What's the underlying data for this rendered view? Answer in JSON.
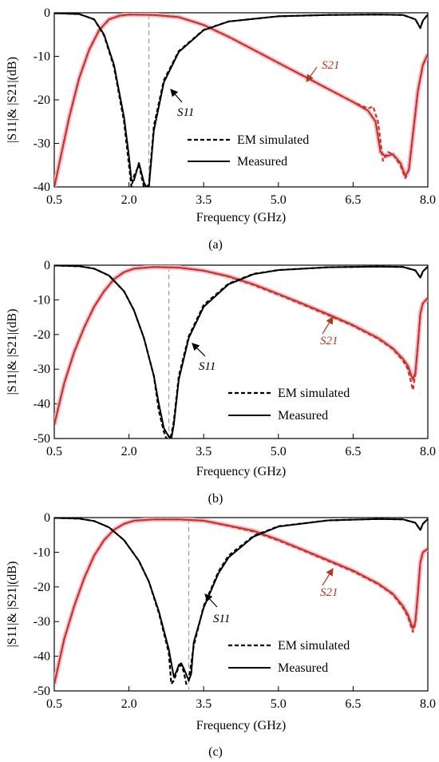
{
  "chart_data": [
    {
      "type": "line",
      "caption": "(a)",
      "xlabel": "Frequency (GHz)",
      "ylabel": "|S11|& |S21|(dB)",
      "xlim": [
        0.5,
        8.0
      ],
      "ylim": [
        -40,
        0
      ],
      "xticks": [
        "0.5",
        "2.0",
        "3.5",
        "5.0",
        "6.5",
        "8.0"
      ],
      "yticks": [
        "0",
        "-10",
        "-20",
        "-30",
        "-40"
      ],
      "legend": [
        "EM simulated",
        "Measured"
      ],
      "annotations": {
        "s11": "S11",
        "s21": "S21"
      },
      "marker_line_x": 2.4,
      "series": [
        {
          "label": "S11",
          "style": "measured",
          "color": "#000000",
          "x": [
            0.5,
            1.0,
            1.3,
            1.5,
            1.7,
            1.9,
            2.0,
            2.05,
            2.1,
            2.2,
            2.3,
            2.35,
            2.4,
            2.5,
            2.7,
            3.0,
            3.5,
            4.0,
            5.0,
            6.0,
            7.0,
            7.5,
            7.75,
            7.85,
            7.9,
            8.0
          ],
          "y": [
            -0.1,
            -0.3,
            -1.5,
            -5,
            -12,
            -24,
            -33,
            -38.5,
            -38.5,
            -34.5,
            -39,
            -40,
            -40,
            -27,
            -16,
            -9,
            -4,
            -2,
            -0.8,
            -0.5,
            -0.4,
            -0.5,
            -1.5,
            -3.5,
            -1.8,
            -0.4
          ]
        },
        {
          "label": "S11",
          "style": "simulated",
          "color": "#000000",
          "x": [
            0.5,
            1.0,
            1.3,
            1.5,
            1.7,
            1.9,
            2.0,
            2.05,
            2.1,
            2.2,
            2.3,
            2.35,
            2.4,
            2.5,
            2.7,
            3.0,
            3.5,
            4.0,
            5.0,
            6.0,
            7.0,
            7.5,
            7.75,
            7.85,
            7.9,
            8.0
          ],
          "y": [
            -0.1,
            -0.3,
            -1.5,
            -5.2,
            -12.5,
            -25,
            -35,
            -40,
            -37.5,
            -35,
            -40,
            -40,
            -39.5,
            -26,
            -15.5,
            -8.8,
            -3.9,
            -2,
            -0.8,
            -0.5,
            -0.4,
            -0.5,
            -1.5,
            -3.5,
            -1.8,
            -0.4
          ]
        },
        {
          "label": "S21",
          "style": "measured",
          "color": "#b03a1e",
          "x": [
            0.5,
            0.8,
            1.0,
            1.2,
            1.4,
            1.6,
            1.8,
            2.0,
            2.5,
            3.0,
            3.5,
            4.0,
            4.5,
            5.0,
            5.5,
            6.0,
            6.5,
            6.8,
            6.95,
            7.05,
            7.15,
            7.3,
            7.45,
            7.55,
            7.62,
            7.7,
            7.8,
            7.9,
            8.0
          ],
          "y": [
            -40,
            -24,
            -15,
            -8.5,
            -4,
            -1.5,
            -0.7,
            -0.4,
            -0.5,
            -1.0,
            -2.8,
            -5.5,
            -8.5,
            -11.5,
            -14.5,
            -17.5,
            -20.5,
            -22.5,
            -25,
            -32,
            -33,
            -32.5,
            -34.5,
            -37.5,
            -36,
            -28,
            -18,
            -12,
            -9.5
          ]
        },
        {
          "label": "S21",
          "style": "simulated",
          "color": "#cf3030",
          "x": [
            0.5,
            0.8,
            1.0,
            1.2,
            1.4,
            1.6,
            1.8,
            2.0,
            2.5,
            3.0,
            3.5,
            4.0,
            4.5,
            5.0,
            5.5,
            6.0,
            6.5,
            6.8,
            6.9,
            7.0,
            7.1,
            7.2,
            7.3,
            7.45,
            7.55,
            7.62,
            7.7,
            7.8,
            7.9,
            8.0
          ],
          "y": [
            -40,
            -24,
            -15,
            -8.5,
            -4,
            -1.5,
            -0.7,
            -0.4,
            -0.5,
            -1.0,
            -2.8,
            -5.5,
            -8.5,
            -11.5,
            -14.5,
            -17.5,
            -20.5,
            -22,
            -21.5,
            -25,
            -34,
            -32,
            -32.5,
            -35,
            -38,
            -36,
            -28,
            -18,
            -12,
            -9.5
          ]
        }
      ]
    },
    {
      "type": "line",
      "caption": "(b)",
      "xlabel": "Frequency (GHz)",
      "ylabel": "|S11|& |S21|(dB)",
      "xlim": [
        0.5,
        8.0
      ],
      "ylim": [
        -50,
        0
      ],
      "xticks": [
        "0.5",
        "2.0",
        "3.5",
        "5.0",
        "6.5",
        "8.0"
      ],
      "yticks": [
        "0",
        "-10",
        "-20",
        "-30",
        "-40",
        "-50"
      ],
      "legend": [
        "EM simulated",
        "Measured"
      ],
      "annotations": {
        "s11": "S11",
        "s21": "S21"
      },
      "marker_line_x": 2.8,
      "series": [
        {
          "label": "S11",
          "style": "measured",
          "color": "#000000",
          "x": [
            0.5,
            1.0,
            1.3,
            1.6,
            1.9,
            2.1,
            2.3,
            2.5,
            2.6,
            2.7,
            2.8,
            2.85,
            2.9,
            3.0,
            3.2,
            3.5,
            4.0,
            4.5,
            5.0,
            6.0,
            7.0,
            7.5,
            7.75,
            7.85,
            7.9,
            8.0
          ],
          "y": [
            -0.1,
            -0.3,
            -1.0,
            -3,
            -7.5,
            -13,
            -21,
            -32,
            -40,
            -47,
            -49.5,
            -50,
            -46,
            -33,
            -21,
            -12,
            -5.5,
            -2.6,
            -1.4,
            -0.6,
            -0.4,
            -0.5,
            -1.5,
            -3.6,
            -1.8,
            -0.4
          ]
        },
        {
          "label": "S11",
          "style": "simulated",
          "color": "#000000",
          "x": [
            0.5,
            1.0,
            1.3,
            1.6,
            1.9,
            2.1,
            2.3,
            2.5,
            2.6,
            2.7,
            2.75,
            2.8,
            2.85,
            2.9,
            3.0,
            3.2,
            3.5,
            4.0,
            4.5,
            5.0,
            6.0,
            7.0,
            7.5,
            7.75,
            7.85,
            7.9,
            8.0
          ],
          "y": [
            -0.1,
            -0.3,
            -1.0,
            -3,
            -7.5,
            -13,
            -21,
            -32,
            -42,
            -48,
            -50,
            -50,
            -49,
            -45,
            -32,
            -20.5,
            -11.5,
            -5.3,
            -2.5,
            -1.4,
            -0.6,
            -0.4,
            -0.5,
            -1.5,
            -3.6,
            -1.8,
            -0.4
          ]
        },
        {
          "label": "S21",
          "style": "measured",
          "color": "#b03a1e",
          "x": [
            0.5,
            0.7,
            0.9,
            1.1,
            1.3,
            1.5,
            1.7,
            1.9,
            2.1,
            2.5,
            3.0,
            3.5,
            4.0,
            4.5,
            5.0,
            5.5,
            6.0,
            6.5,
            7.0,
            7.3,
            7.5,
            7.6,
            7.7,
            7.75,
            7.8,
            7.85,
            7.9,
            8.0
          ],
          "y": [
            -46,
            -34,
            -25,
            -18,
            -12,
            -7.5,
            -4,
            -2,
            -1,
            -0.5,
            -0.7,
            -1.6,
            -3.2,
            -5.5,
            -8.3,
            -11.2,
            -14.2,
            -17.3,
            -21,
            -24,
            -27,
            -29,
            -33,
            -31,
            -23,
            -14,
            -11,
            -9.5
          ]
        },
        {
          "label": "S21",
          "style": "simulated",
          "color": "#cf3030",
          "x": [
            0.5,
            0.7,
            0.9,
            1.1,
            1.3,
            1.5,
            1.7,
            1.9,
            2.1,
            2.5,
            3.0,
            3.5,
            4.0,
            4.5,
            5.0,
            5.5,
            6.0,
            6.5,
            7.0,
            7.3,
            7.5,
            7.6,
            7.7,
            7.75,
            7.8,
            7.85,
            7.9,
            8.0
          ],
          "y": [
            -46,
            -34,
            -25,
            -18,
            -12,
            -7.5,
            -4,
            -2,
            -1,
            -0.5,
            -0.7,
            -1.6,
            -3.3,
            -5.7,
            -8.5,
            -11.4,
            -14.4,
            -17.5,
            -21.2,
            -24.2,
            -27.5,
            -30,
            -36,
            -31.5,
            -23,
            -14,
            -11,
            -9.5
          ]
        }
      ]
    },
    {
      "type": "line",
      "caption": "(c)",
      "xlabel": "Frequency (GHz)",
      "ylabel": "|S11|& |S21|(dB)",
      "xlim": [
        0.5,
        8.0
      ],
      "ylim": [
        -50,
        0
      ],
      "xticks": [
        "0.5",
        "2.0",
        "3.5",
        "5.0",
        "6.5",
        "8.0"
      ],
      "yticks": [
        "0",
        "-10",
        "-20",
        "-30",
        "-40",
        "-50"
      ],
      "legend": [
        "EM simulated",
        "Measured"
      ],
      "annotations": {
        "s11": "S11",
        "s21": "S21"
      },
      "marker_line_x": 3.2,
      "series": [
        {
          "label": "S11",
          "style": "measured",
          "color": "#000000",
          "x": [
            0.5,
            1.0,
            1.3,
            1.6,
            1.9,
            2.2,
            2.4,
            2.6,
            2.8,
            2.9,
            2.95,
            3.0,
            3.05,
            3.1,
            3.2,
            3.25,
            3.3,
            3.5,
            3.8,
            4.0,
            4.5,
            5.0,
            6.0,
            7.0,
            7.5,
            7.75,
            7.85,
            7.9,
            8.0
          ],
          "y": [
            -0.1,
            -0.3,
            -1.0,
            -2.8,
            -6.5,
            -12.5,
            -18.5,
            -27,
            -38,
            -46,
            -44.5,
            -42.5,
            -42,
            -43.5,
            -47,
            -45,
            -36,
            -26,
            -16,
            -11.5,
            -5.5,
            -2.6,
            -0.8,
            -0.4,
            -0.5,
            -1.5,
            -3.6,
            -1.8,
            -0.4
          ]
        },
        {
          "label": "S11",
          "style": "simulated",
          "color": "#000000",
          "x": [
            0.5,
            1.0,
            1.3,
            1.6,
            1.9,
            2.2,
            2.4,
            2.6,
            2.8,
            2.85,
            2.9,
            3.0,
            3.05,
            3.1,
            3.15,
            3.2,
            3.3,
            3.5,
            3.8,
            4.0,
            4.5,
            5.0,
            6.0,
            7.0,
            7.5,
            7.75,
            7.85,
            7.9,
            8.0
          ],
          "y": [
            -0.1,
            -0.3,
            -1.0,
            -2.8,
            -6.5,
            -12.5,
            -18.5,
            -27.5,
            -39,
            -48,
            -47,
            -43,
            -42.5,
            -44.5,
            -48,
            -47,
            -37,
            -25.5,
            -15.5,
            -11,
            -5.3,
            -2.5,
            -0.8,
            -0.4,
            -0.5,
            -1.5,
            -3.6,
            -1.8,
            -0.4
          ]
        },
        {
          "label": "S21",
          "style": "measured",
          "color": "#b03a1e",
          "x": [
            0.5,
            0.7,
            0.9,
            1.1,
            1.3,
            1.5,
            1.7,
            1.9,
            2.1,
            2.5,
            3.0,
            3.5,
            4.0,
            4.5,
            5.0,
            5.5,
            6.0,
            6.5,
            7.0,
            7.3,
            7.5,
            7.6,
            7.7,
            7.75,
            7.8,
            7.85,
            7.9,
            8.0
          ],
          "y": [
            -48,
            -35,
            -25.5,
            -17.5,
            -11,
            -6.5,
            -3.5,
            -1.8,
            -0.9,
            -0.5,
            -0.5,
            -0.9,
            -2.3,
            -3.8,
            -6.4,
            -9.3,
            -12.3,
            -15.3,
            -19,
            -22,
            -25.5,
            -28,
            -32,
            -30,
            -22,
            -13,
            -10,
            -9
          ]
        },
        {
          "label": "S21",
          "style": "simulated",
          "color": "#cf3030",
          "x": [
            0.5,
            0.7,
            0.9,
            1.1,
            1.3,
            1.5,
            1.7,
            1.9,
            2.1,
            2.5,
            3.0,
            3.5,
            4.0,
            4.5,
            5.0,
            5.5,
            6.0,
            6.5,
            7.0,
            7.3,
            7.5,
            7.6,
            7.7,
            7.75,
            7.8,
            7.85,
            7.9,
            8.0
          ],
          "y": [
            -48,
            -35,
            -25.5,
            -17.5,
            -11,
            -6.5,
            -3.5,
            -1.8,
            -0.9,
            -0.5,
            -0.5,
            -0.9,
            -2.4,
            -4,
            -6.6,
            -9.5,
            -12.5,
            -15.5,
            -19.2,
            -22.2,
            -26,
            -28.5,
            -33,
            -30.5,
            -22,
            -13,
            -10,
            -9
          ]
        }
      ]
    }
  ]
}
